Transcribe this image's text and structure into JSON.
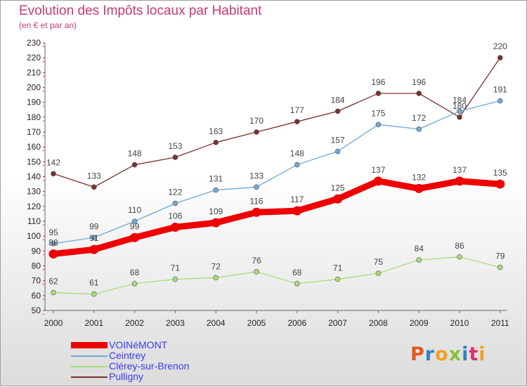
{
  "title": "Evolution des Impôts locaux par Habitant",
  "subtitle": "(en € et par an)",
  "logo": {
    "text": "Proxiti",
    "colors": [
      "#e05a1c",
      "#2f7fc4",
      "#f0a020",
      "#8ac23a",
      "#2f7fc4",
      "#e0306a",
      "#f0a020"
    ]
  },
  "chart_data": {
    "type": "line",
    "x": [
      "2000",
      "2001",
      "2002",
      "2003",
      "2004",
      "2005",
      "2006",
      "2007",
      "2008",
      "2009",
      "2010",
      "2011"
    ],
    "ylim": [
      50,
      230
    ],
    "yticks": [
      50,
      60,
      70,
      80,
      90,
      100,
      110,
      120,
      130,
      140,
      150,
      160,
      170,
      180,
      190,
      200,
      210,
      220,
      230
    ],
    "grid": false,
    "legend_position": "bottom-left",
    "series": [
      {
        "name": "VOINéMONT",
        "color": "#ee0000",
        "values": [
          88,
          91,
          99,
          106,
          109,
          116,
          117,
          125,
          137,
          132,
          137,
          135
        ]
      },
      {
        "name": "Ceintrey",
        "color": "#6fa8d6",
        "values": [
          95,
          99,
          110,
          122,
          131,
          133,
          148,
          157,
          175,
          172,
          184,
          191
        ]
      },
      {
        "name": "Clérey-sur-Brenon",
        "color": "#a8dc78",
        "values": [
          62,
          61,
          68,
          71,
          72,
          76,
          68,
          71,
          75,
          84,
          86,
          79
        ]
      },
      {
        "name": "Pulligny",
        "color": "#7a3030",
        "values": [
          142,
          133,
          148,
          153,
          163,
          170,
          177,
          184,
          196,
          196,
          180,
          220
        ]
      }
    ]
  }
}
